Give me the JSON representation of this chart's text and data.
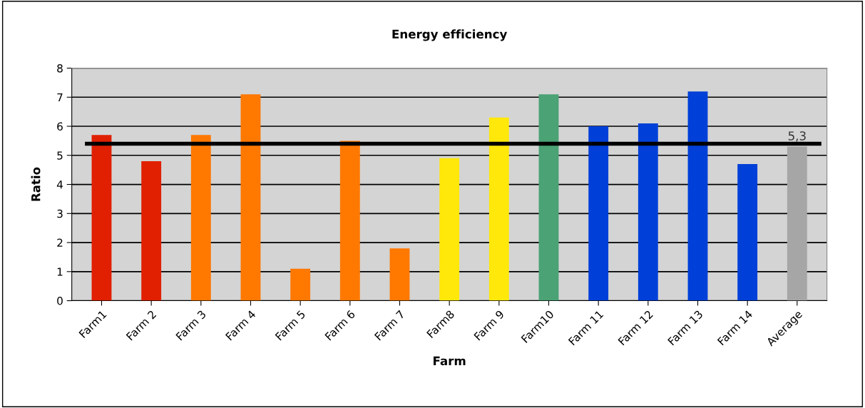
{
  "chart_data": {
    "type": "bar",
    "title": "Energy efficiency",
    "xlabel": "Farm",
    "ylabel": "Ratio",
    "categories": [
      "Farm1",
      "Farm 2",
      "Farm 3",
      "Farm 4",
      "Farm 5",
      "Farm 6",
      "Farm 7",
      "Farm8",
      "Farm 9",
      "Farm10",
      "Farm 11",
      "Farm 12",
      "Farm 13",
      "Farm 14",
      "Average"
    ],
    "values": [
      5.7,
      4.8,
      5.7,
      7.1,
      1.1,
      5.5,
      1.8,
      4.9,
      6.3,
      7.1,
      6.0,
      6.1,
      7.2,
      4.7,
      5.3
    ],
    "colors": [
      "#e02000",
      "#e02000",
      "#ff7800",
      "#ff7800",
      "#ff7800",
      "#ff7800",
      "#ff7800",
      "#ffe80a",
      "#ffe80a",
      "#4aa275",
      "#0040d8",
      "#0040d8",
      "#0040d8",
      "#0040d8",
      "#a6a6a6"
    ],
    "value_labels": [
      null,
      null,
      null,
      null,
      null,
      null,
      null,
      null,
      null,
      null,
      null,
      null,
      null,
      null,
      "5,3"
    ],
    "ylim": [
      0,
      8
    ],
    "yticks": [
      0,
      1,
      2,
      3,
      4,
      5,
      6,
      7,
      8
    ],
    "grid": "y",
    "ref_lines": [
      {
        "axis": "y",
        "value": 5.4,
        "color": "#000000"
      }
    ]
  }
}
